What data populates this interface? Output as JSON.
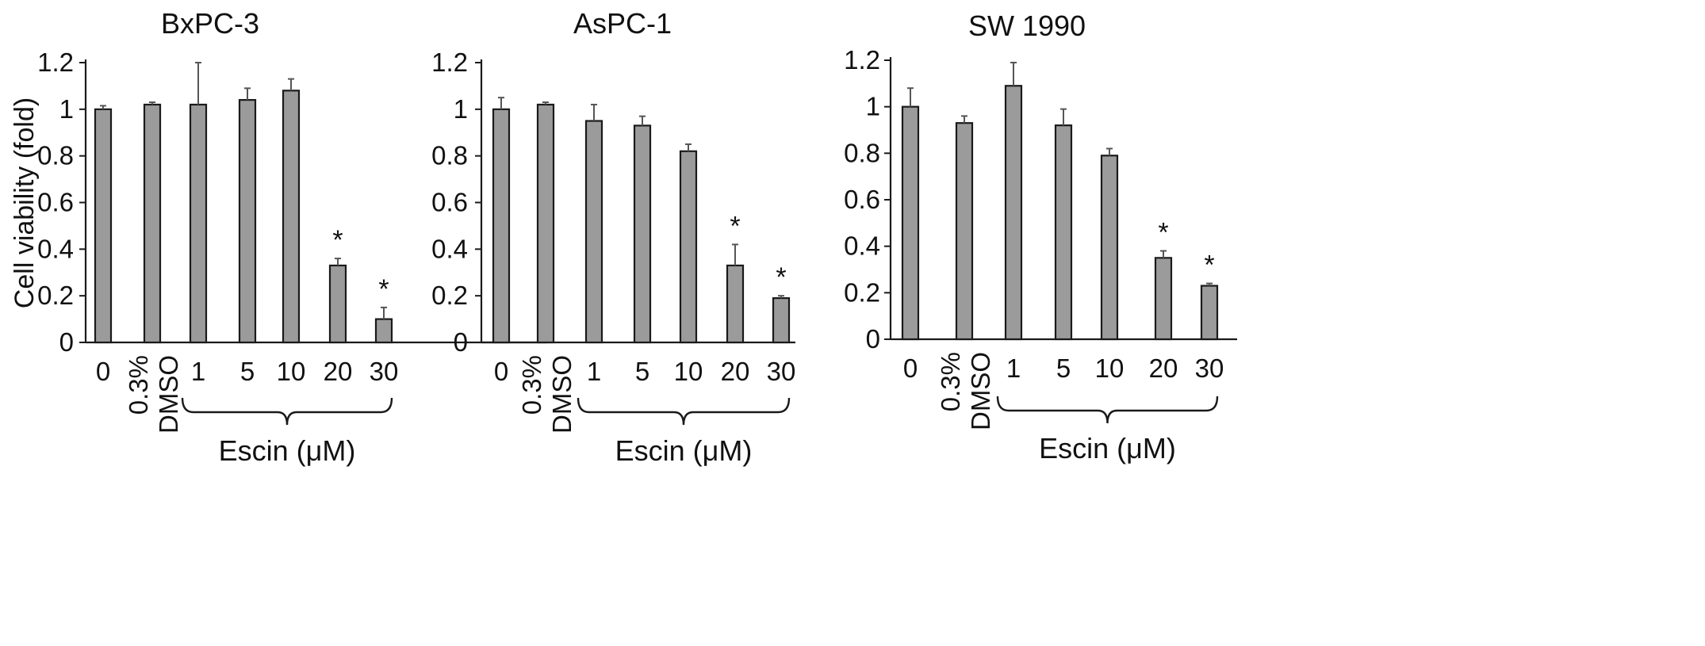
{
  "figure": {
    "ylabel": "Cell viability (fold)",
    "bar_color": "#9b9b9b",
    "edge_color": "#1a1a1a",
    "axis_color": "#1a1a1a"
  },
  "chart_data": [
    {
      "type": "bar",
      "title": "BxPC-3",
      "ylabel": "Cell viability (fold)",
      "xlabel": "Escin (μM)",
      "ylim": [
        0,
        1.2
      ],
      "yticks": [
        "0",
        "0.2",
        "0.4",
        "0.6",
        "0.8",
        "1",
        "1.2"
      ],
      "categories": [
        "0",
        "0.3% DMSO",
        "1",
        "5",
        "10",
        "20",
        "30"
      ],
      "values": [
        1.0,
        1.02,
        1.02,
        1.04,
        1.08,
        0.33,
        0.1
      ],
      "errors": [
        0.015,
        0.01,
        0.18,
        0.05,
        0.05,
        0.03,
        0.05
      ],
      "significance": [
        "",
        "",
        "",
        "",
        "",
        "*",
        "*"
      ],
      "bracket_categories": [
        "1",
        "30"
      ]
    },
    {
      "type": "bar",
      "title": "AsPC-1",
      "ylabel": "",
      "xlabel": "Escin (μM)",
      "ylim": [
        0,
        1.2
      ],
      "yticks": [
        "0",
        "0.2",
        "0.4",
        "0.6",
        "0.8",
        "1",
        "1.2"
      ],
      "categories": [
        "0",
        "0.3% DMSO",
        "1",
        "5",
        "10",
        "20",
        "30"
      ],
      "values": [
        1.0,
        1.02,
        0.95,
        0.93,
        0.82,
        0.33,
        0.19
      ],
      "errors": [
        0.05,
        0.01,
        0.07,
        0.04,
        0.03,
        0.09,
        0.01
      ],
      "significance": [
        "",
        "",
        "",
        "",
        "",
        "*",
        "*"
      ],
      "bracket_categories": [
        "1",
        "30"
      ]
    },
    {
      "type": "bar",
      "title": "SW 1990",
      "ylabel": "",
      "xlabel": "Escin (μM)",
      "ylim": [
        0,
        1.2
      ],
      "yticks": [
        "0",
        "0.2",
        "0.4",
        "0.6",
        "0.8",
        "1",
        "1.2"
      ],
      "categories": [
        "0",
        "0.3% DMSO",
        "1",
        "5",
        "10",
        "20",
        "30"
      ],
      "values": [
        1.0,
        0.93,
        1.09,
        0.92,
        0.79,
        0.35,
        0.23
      ],
      "errors": [
        0.08,
        0.03,
        0.1,
        0.07,
        0.03,
        0.03,
        0.01
      ],
      "significance": [
        "",
        "",
        "",
        "",
        "",
        "*",
        "*"
      ],
      "bracket_categories": [
        "1",
        "30"
      ]
    }
  ]
}
